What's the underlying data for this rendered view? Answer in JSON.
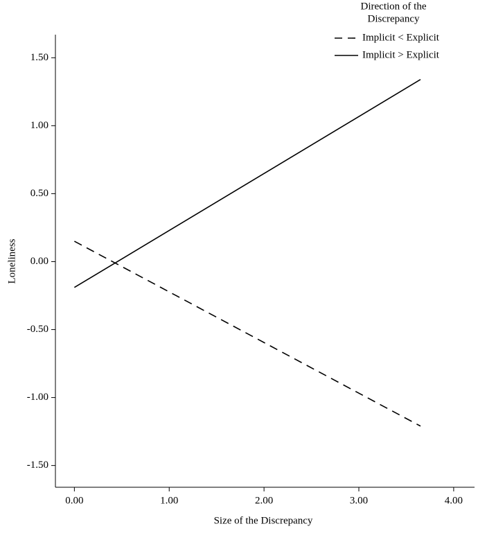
{
  "chart_data": {
    "type": "line",
    "x_label": "Size of the Discrepancy",
    "y_label": "Loneliness",
    "legend_title": [
      "Direction of the",
      "Discrepancy"
    ],
    "legend_position": "top-right",
    "x": [
      0,
      3.65
    ],
    "series": [
      {
        "name": "Implicit < Explicit",
        "color": "#000000",
        "style": "dashed",
        "values": [
          0.15,
          -1.21
        ]
      },
      {
        "name": "Implicit > Explicit",
        "color": "#000000",
        "style": "solid",
        "values": [
          -0.19,
          1.34
        ]
      }
    ],
    "xlim": [
      -0.2,
      4.22
    ],
    "ylim": [
      -1.66,
      1.67
    ],
    "xticks": [
      {
        "value": 0,
        "label": "0.00"
      },
      {
        "value": 1,
        "label": "1.00"
      },
      {
        "value": 2,
        "label": "2.00"
      },
      {
        "value": 3,
        "label": "3.00"
      },
      {
        "value": 4,
        "label": "4.00"
      }
    ],
    "yticks": [
      {
        "value": -1.5,
        "label": "-1.50"
      },
      {
        "value": -1,
        "label": "-1.00"
      },
      {
        "value": -0.5,
        "label": "-0.50"
      },
      {
        "value": 0,
        "label": "0.00"
      },
      {
        "value": 0.5,
        "label": "0.50"
      },
      {
        "value": 1,
        "label": "1.00"
      },
      {
        "value": 1.5,
        "label": "1.50"
      }
    ],
    "grid": false
  }
}
